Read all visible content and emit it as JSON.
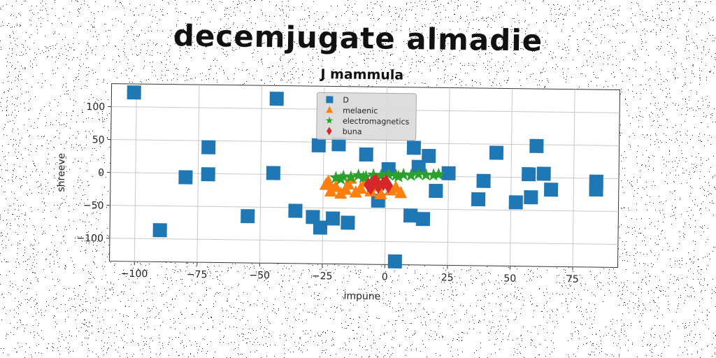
{
  "page": {
    "title": "decemjugate almadie"
  },
  "chart_data": {
    "type": "scatter",
    "title": "J mammula",
    "xlabel": "impune",
    "ylabel": "shreeve",
    "xlim": [
      -110,
      93
    ],
    "ylim": [
      -135,
      135
    ],
    "xticks": [
      -100,
      -75,
      -50,
      -25,
      0,
      25,
      50,
      75
    ],
    "yticks": [
      -100,
      -50,
      0,
      50,
      100
    ],
    "xtick_labels": [
      "−100",
      "−75",
      "−50",
      "−25",
      "0",
      "25",
      "50",
      "75"
    ],
    "ytick_labels": [
      "−100",
      "−50",
      "0",
      "50",
      "100"
    ],
    "grid": true,
    "legend_position": "top-center",
    "series": [
      {
        "name": "D",
        "marker": "square",
        "color": "#1f77b4",
        "points": [
          [
            -101,
            122
          ],
          [
            -44,
            115
          ],
          [
            -71,
            40
          ],
          [
            -80,
            -6
          ],
          [
            -71,
            -1
          ],
          [
            -45,
            2
          ],
          [
            -90,
            -87
          ],
          [
            -55,
            -64
          ],
          [
            -36,
            -55
          ],
          [
            -29,
            -64
          ],
          [
            -26,
            -80
          ],
          [
            -21,
            -66
          ],
          [
            -15,
            -72
          ],
          [
            -27,
            45
          ],
          [
            -19,
            47
          ],
          [
            -8,
            32
          ],
          [
            11,
            43
          ],
          [
            17,
            31
          ],
          [
            13,
            14
          ],
          [
            25,
            5
          ],
          [
            15,
            -65
          ],
          [
            10,
            -60
          ],
          [
            20,
            -22
          ],
          [
            37,
            -34
          ],
          [
            39,
            -6
          ],
          [
            44,
            37
          ],
          [
            52,
            -38
          ],
          [
            57,
            5
          ],
          [
            58,
            -30
          ],
          [
            60,
            48
          ],
          [
            63,
            6
          ],
          [
            66,
            -18
          ],
          [
            84,
            -5
          ],
          [
            84,
            -17
          ],
          [
            4,
            -130
          ],
          [
            1,
            10
          ],
          [
            -3,
            -38
          ]
        ]
      },
      {
        "name": "melaenic",
        "marker": "triangle",
        "color": "#ff7f0e",
        "points": [
          [
            -23,
            -10
          ],
          [
            -22,
            -25
          ],
          [
            -20,
            -18
          ],
          [
            -18,
            -28
          ],
          [
            -15,
            -14
          ],
          [
            -12,
            -26
          ],
          [
            -10,
            -20
          ],
          [
            -8,
            -10
          ],
          [
            -6,
            -24
          ],
          [
            -4,
            -16
          ],
          [
            -2,
            -28
          ],
          [
            0,
            -12
          ],
          [
            2,
            -22
          ],
          [
            4,
            -18
          ],
          [
            6,
            -26
          ],
          [
            -14,
            -5
          ],
          [
            -24,
            -15
          ],
          [
            -16,
            -22
          ]
        ]
      },
      {
        "name": "electromagnetics",
        "marker": "star",
        "color": "#2ca02c",
        "points": [
          [
            -20,
            -4
          ],
          [
            -17,
            -2
          ],
          [
            -14,
            -3
          ],
          [
            -11,
            0
          ],
          [
            -8,
            -2
          ],
          [
            -5,
            1
          ],
          [
            -2,
            0
          ],
          [
            1,
            2
          ],
          [
            4,
            1
          ],
          [
            7,
            2
          ],
          [
            10,
            1
          ],
          [
            13,
            3
          ],
          [
            16,
            2
          ],
          [
            19,
            2
          ],
          [
            21,
            3
          ],
          [
            -18,
            -6
          ],
          [
            -9,
            -3
          ],
          [
            5,
            -1
          ]
        ]
      },
      {
        "name": "buna",
        "marker": "diamond",
        "color": "#d62728",
        "points": [
          [
            -7,
            -14
          ],
          [
            -5,
            -10
          ],
          [
            -3,
            -16
          ],
          [
            -1,
            -12
          ],
          [
            1,
            -15
          ],
          [
            -4,
            -8
          ],
          [
            -6,
            -18
          ],
          [
            0,
            -9
          ]
        ]
      }
    ]
  }
}
